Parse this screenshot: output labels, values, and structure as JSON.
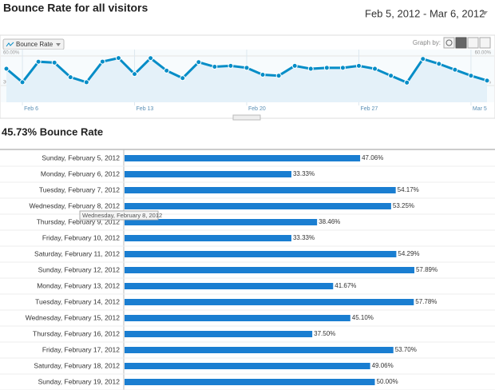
{
  "header": {
    "title": "Bounce Rate for all visitors",
    "date_range": "Feb 5, 2012 - Mar 6, 2012"
  },
  "controls": {
    "graph_by": "Graph by:"
  },
  "tooltip": "Wednesday, February 8, 2012",
  "chart_data": [
    {
      "type": "line",
      "categories": [
        null,
        "Feb 6",
        null,
        null,
        null,
        null,
        null,
        null,
        "Feb 13",
        null,
        null,
        null,
        null,
        null,
        null,
        "Feb 20",
        null,
        null,
        null,
        null,
        null,
        null,
        "Feb 27",
        null,
        null,
        null,
        null,
        null,
        null,
        "Mar 5",
        null
      ],
      "series": [
        {
          "name": "Bounce Rate",
          "color": "#058dc7",
          "values": [
            47.06,
            33.33,
            54.17,
            53.25,
            38.46,
            33.33,
            54.29,
            57.89,
            41.67,
            57.78,
            45.1,
            37.5,
            53.7,
            49.06,
            50,
            48,
            41,
            40,
            50,
            47,
            48,
            48,
            50,
            47,
            40,
            33,
            57,
            52,
            46,
            40,
            35
          ]
        }
      ],
      "ylim": [
        13,
        66.5
      ],
      "yticks": [
        {
          "value": 60,
          "label": "60.00%"
        },
        {
          "value": 30,
          "label": "30.00%"
        }
      ]
    },
    {
      "type": "hbar",
      "title": "45.73% Bounce Rate",
      "color": "#1a7ed1",
      "categories": [
        "Sunday, February 5, 2012",
        "Monday, February 6, 2012",
        "Tuesday, February 7, 2012",
        "Wednesday, February 8, 2012",
        "Thursday, February 9, 2012",
        "Friday, February 10, 2012",
        "Saturday, February 11, 2012",
        "Sunday, February 12, 2012",
        "Monday, February 13, 2012",
        "Tuesday, February 14, 2012",
        "Wednesday, February 15, 2012",
        "Thursday, February 16, 2012",
        "Friday, February 17, 2012",
        "Saturday, February 18, 2012",
        "Sunday, February 19, 2012"
      ],
      "values": [
        47.06,
        33.33,
        54.17,
        53.25,
        38.46,
        33.33,
        54.29,
        57.89,
        41.67,
        57.78,
        45.1,
        37.5,
        53.7,
        49.06,
        50
      ],
      "value_labels": [
        "47.06%",
        "33.33%",
        "54.17%",
        "53.25%",
        "38.46%",
        "33.33%",
        "54.29%",
        "57.89%",
        "41.67%",
        "57.78%",
        "45.10%",
        "37.50%",
        "53.70%",
        "49.06%",
        "50.00%"
      ],
      "xlim": [
        0,
        74
      ]
    }
  ]
}
